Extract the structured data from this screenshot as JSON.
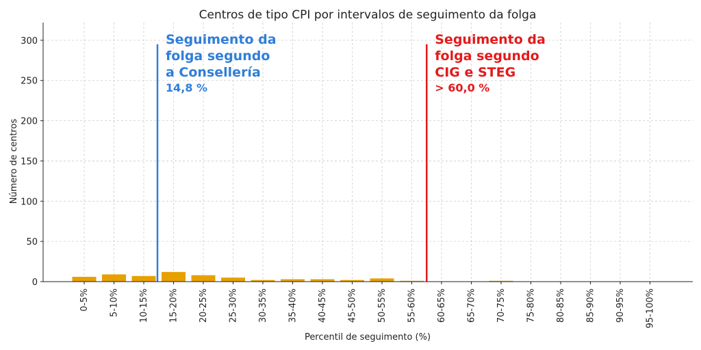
{
  "chart_data": {
    "type": "bar",
    "title": "Centros de tipo CPI por intervalos de seguimento da folga",
    "xlabel": "Percentil de seguimento (%)",
    "ylabel": "Número de centros",
    "categories": [
      "0-5%",
      "5-10%",
      "10-15%",
      "15-20%",
      "20-25%",
      "25-30%",
      "30-35%",
      "35-40%",
      "40-45%",
      "45-50%",
      "50-55%",
      "55-60%",
      "60-65%",
      "65-70%",
      "70-75%",
      "75-80%",
      "80-85%",
      "85-90%",
      "90-95%",
      "95-100%"
    ],
    "values": [
      6,
      9,
      7,
      12,
      8,
      5,
      2,
      3,
      3,
      2,
      4,
      1,
      0,
      0,
      1,
      0,
      0,
      0,
      0,
      0
    ],
    "ylim": [
      0,
      322
    ],
    "yticks": [
      0,
      50,
      100,
      150,
      200,
      250,
      300
    ],
    "grid": true,
    "bar_color": "#e6a000",
    "reference_lines": [
      {
        "x_value": 14.8,
        "color": "#2f7ed8",
        "label_lines": [
          "Seguimento da",
          "folga segundo",
          "a Consellería"
        ],
        "value_label": "14,8 %"
      },
      {
        "x_value": 60.0,
        "color": "#e31a1c",
        "label_lines": [
          "Seguimento da",
          "folga segundo",
          "CIG e STEG"
        ],
        "value_label": "> 60,0 %"
      }
    ]
  }
}
